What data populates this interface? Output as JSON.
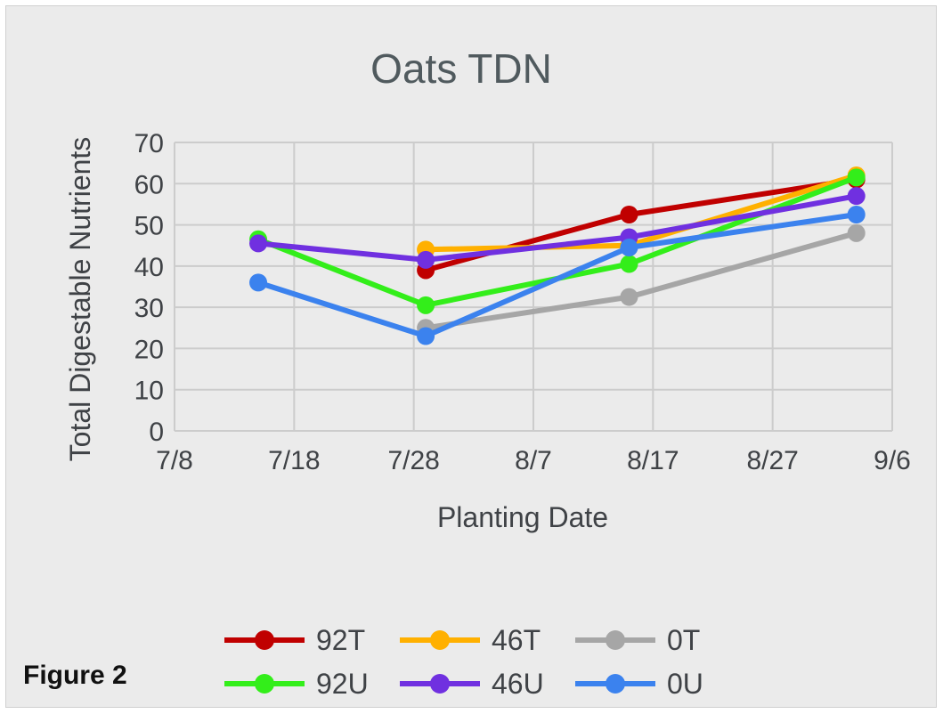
{
  "figure_label": "Figure 2",
  "chart_data": {
    "type": "line",
    "title": "Oats TDN",
    "xlabel": "Planting Date",
    "ylabel": "Total Digestable Nutrients",
    "x_tick_labels": [
      "7/8",
      "7/18",
      "7/28",
      "8/7",
      "8/17",
      "8/27",
      "9/6"
    ],
    "x_ticks": [
      "2023-07-08",
      "2023-07-18",
      "2023-07-28",
      "2023-08-07",
      "2023-08-17",
      "2023-08-27",
      "2023-09-06"
    ],
    "xlim": [
      "2023-07-08",
      "2023-09-06"
    ],
    "ylim": [
      0,
      70
    ],
    "y_ticks": [
      0,
      10,
      20,
      30,
      40,
      50,
      60,
      70
    ],
    "grid": true,
    "legend_position": "bottom",
    "series": [
      {
        "name": "92T",
        "color": "#c00000",
        "points": [
          {
            "x": "2023-07-29",
            "y": 39
          },
          {
            "x": "2023-08-15",
            "y": 52.5
          },
          {
            "x": "2023-09-03",
            "y": 61
          }
        ]
      },
      {
        "name": "46T",
        "color": "#ffb000",
        "points": [
          {
            "x": "2023-07-29",
            "y": 44
          },
          {
            "x": "2023-08-15",
            "y": 45
          },
          {
            "x": "2023-09-03",
            "y": 62
          }
        ]
      },
      {
        "name": "0T",
        "color": "#a6a6a6",
        "points": [
          {
            "x": "2023-07-29",
            "y": 25
          },
          {
            "x": "2023-08-15",
            "y": 32.5
          },
          {
            "x": "2023-09-03",
            "y": 48
          }
        ]
      },
      {
        "name": "92U",
        "color": "#33ee1a",
        "points": [
          {
            "x": "2023-07-15",
            "y": 46.5
          },
          {
            "x": "2023-07-29",
            "y": 30.5
          },
          {
            "x": "2023-08-15",
            "y": 40.5
          },
          {
            "x": "2023-09-03",
            "y": 61.5
          }
        ]
      },
      {
        "name": "46U",
        "color": "#7030e0",
        "points": [
          {
            "x": "2023-07-15",
            "y": 45.5
          },
          {
            "x": "2023-07-29",
            "y": 41.5
          },
          {
            "x": "2023-08-15",
            "y": 47
          },
          {
            "x": "2023-09-03",
            "y": 57
          }
        ]
      },
      {
        "name": "0U",
        "color": "#3b82ee",
        "points": [
          {
            "x": "2023-07-15",
            "y": 36
          },
          {
            "x": "2023-07-29",
            "y": 23
          },
          {
            "x": "2023-08-15",
            "y": 44.5
          },
          {
            "x": "2023-09-03",
            "y": 52.5
          }
        ]
      }
    ]
  }
}
